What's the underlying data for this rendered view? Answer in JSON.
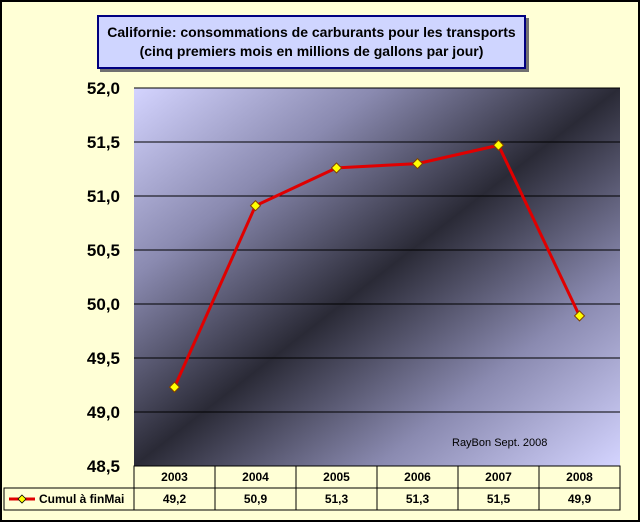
{
  "chart_data": {
    "type": "line",
    "title": "Californie: consommations de carburants pour les transports",
    "subtitle": "(cinq premiers mois en millions de gallons par jour)",
    "categories": [
      "2003",
      "2004",
      "2005",
      "2006",
      "2007",
      "2008"
    ],
    "series": [
      {
        "name": "Cumul à finMai",
        "values": [
          49.23,
          50.91,
          51.26,
          51.3,
          51.47,
          49.89
        ],
        "labels": [
          "49,2",
          "50,9",
          "51,3",
          "51,3",
          "51,5",
          "49,9"
        ],
        "color": "#E00000",
        "marker_color": "#FFFF00"
      }
    ],
    "ylim": [
      48.5,
      52.0
    ],
    "yticks": [
      "48,5",
      "49,0",
      "49,5",
      "50,0",
      "50,5",
      "51,0",
      "51,5",
      "52,0"
    ],
    "grid": true,
    "legend": "data-table",
    "annotation": "RayBon Sept. 2008"
  }
}
